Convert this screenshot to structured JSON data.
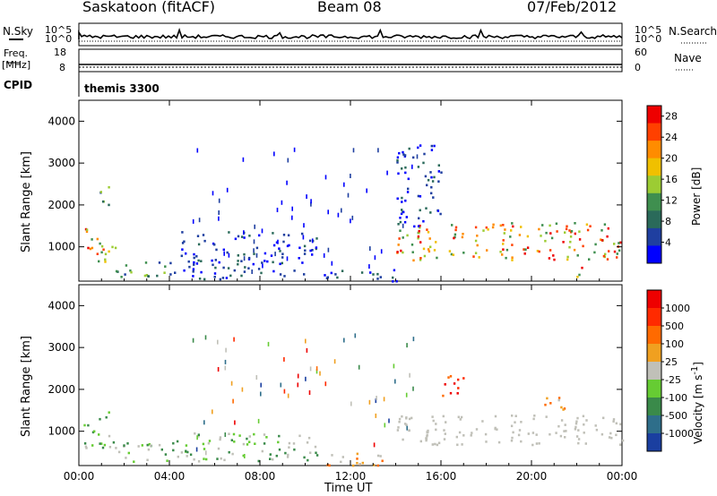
{
  "header": {
    "station": "Saskatoon (fitACF)",
    "beam": "Beam 08",
    "date": "07/Feb/2012"
  },
  "status_panels": {
    "nsky_label": "N.Sky",
    "nsky_ticks": [
      "10^5",
      "10^0"
    ],
    "nsearch_label": "N.Search",
    "nsearch_ticks": [
      "10^5",
      "10^0"
    ],
    "freq_label": "Freq.",
    "freq_unit": "[MHz]",
    "freq_ticks": [
      "18",
      "8"
    ],
    "nave_label": "Nave",
    "nave_ticks": [
      "60",
      "0"
    ],
    "cpid_label": "CPID",
    "cpid_value": "themis 3300"
  },
  "colors": {
    "power_scale": [
      "#0000ff",
      "#1f3fa0",
      "#2a6a5a",
      "#3f8f4f",
      "#9ccc33",
      "#f0c000",
      "#ff8c00",
      "#ff4000",
      "#ee0000"
    ],
    "velocity_scale": [
      "#1a3fa0",
      "#2e6e8a",
      "#3a8a4a",
      "#66cc33",
      "#c0c0b8",
      "#f0a020",
      "#ff6a00",
      "#ff2a00",
      "#ee0000"
    ]
  },
  "chart_data": [
    {
      "type": "heatmap",
      "title": "",
      "xlabel": "Time UT",
      "ylabel": "Slant Range [km]",
      "x_ticks": [
        "00:00",
        "04:00",
        "08:00",
        "12:00",
        "16:00",
        "20:00",
        "00:00"
      ],
      "y_ticks": [
        "1000",
        "2000",
        "3000",
        "4000"
      ],
      "ylim": [
        180,
        4500
      ],
      "xlim_hours": [
        0,
        24
      ],
      "colorbar": {
        "label": "Power [dB]",
        "ticks": [
          "4",
          "8",
          "12",
          "16",
          "20",
          "24",
          "28"
        ],
        "range": [
          0,
          30
        ]
      },
      "features": [
        {
          "t": [
            0.2,
            1.6
          ],
          "range": [
            600,
            1500
          ],
          "level": "high"
        },
        {
          "t": [
            0.8,
            1.3
          ],
          "range": [
            1800,
            2500
          ],
          "level": "mid"
        },
        {
          "t": [
            1.6,
            4.5
          ],
          "range": [
            300,
            700
          ],
          "level": "mid"
        },
        {
          "t": [
            4.5,
            10.5
          ],
          "range": [
            250,
            1400
          ],
          "level": "low"
        },
        {
          "t": [
            10.5,
            14.0
          ],
          "range": [
            200,
            500
          ],
          "level": "low"
        },
        {
          "t": [
            14.0,
            24.0
          ],
          "range": [
            700,
            1600
          ],
          "level": "high"
        },
        {
          "t": [
            14.0,
            16.0
          ],
          "range": [
            1500,
            3500
          ],
          "level": "low"
        },
        {
          "t": [
            21.5,
            22.2
          ],
          "range": [
            300,
            600
          ],
          "level": "high"
        }
      ]
    },
    {
      "type": "heatmap",
      "title": "",
      "xlabel": "Time UT",
      "ylabel": "Slant Range [km]",
      "x_ticks": [
        "00:00",
        "04:00",
        "08:00",
        "12:00",
        "16:00",
        "20:00",
        "00:00"
      ],
      "y_ticks": [
        "1000",
        "2000",
        "3000",
        "4000"
      ],
      "ylim": [
        180,
        4500
      ],
      "xlim_hours": [
        0,
        24
      ],
      "colorbar": {
        "label": "Velocity [m s^-1]",
        "ticks": [
          "1000",
          "500",
          "100",
          "25",
          "-25",
          "-100",
          "-500",
          "-1000"
        ],
        "range": [
          -1000,
          1000
        ]
      },
      "features": [
        {
          "t": [
            0.2,
            1.6
          ],
          "range": [
            600,
            1500
          ],
          "level": "green"
        },
        {
          "t": [
            1.6,
            4.5
          ],
          "range": [
            300,
            800
          ],
          "level": "green"
        },
        {
          "t": [
            4.5,
            10.5
          ],
          "range": [
            300,
            1000
          ],
          "level": "green"
        },
        {
          "t": [
            10.5,
            14.0
          ],
          "range": [
            200,
            500
          ],
          "level": "orange"
        },
        {
          "t": [
            14.0,
            24.0
          ],
          "range": [
            700,
            1400
          ],
          "level": "grey"
        },
        {
          "t": [
            16.0,
            17.0
          ],
          "range": [
            1800,
            2400
          ],
          "level": "red"
        },
        {
          "t": [
            20.5,
            21.5
          ],
          "range": [
            1500,
            2000
          ],
          "level": "orange"
        }
      ]
    }
  ]
}
